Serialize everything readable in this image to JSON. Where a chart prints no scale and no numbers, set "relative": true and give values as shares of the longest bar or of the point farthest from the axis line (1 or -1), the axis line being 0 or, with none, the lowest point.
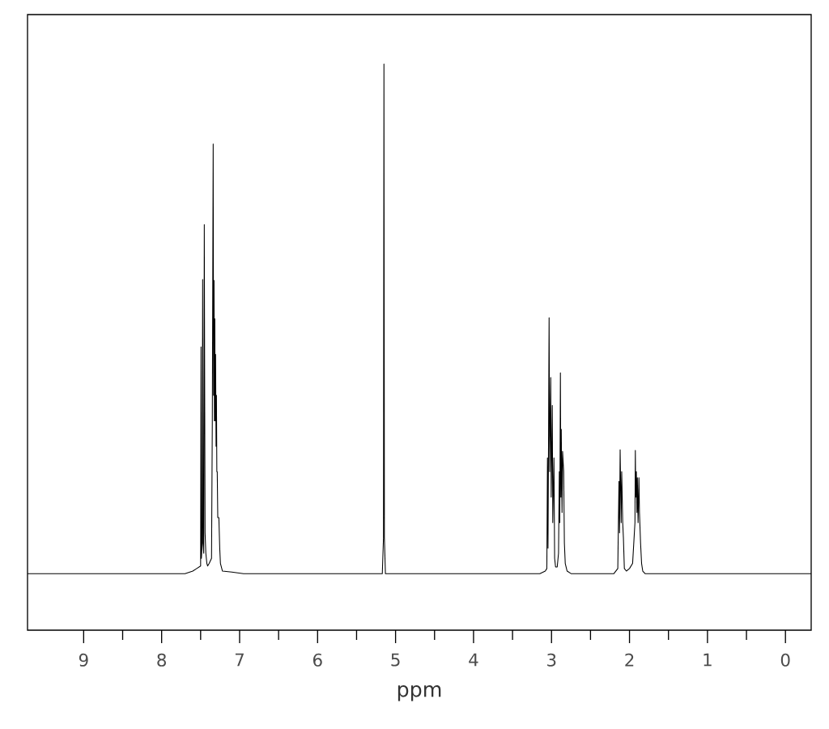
{
  "chart_data": {
    "type": "line",
    "xlabel": "ppm",
    "relative": true,
    "color": "#000000",
    "xlim": [
      9.72,
      -0.33
    ],
    "xticks": [
      9,
      8,
      7,
      6,
      5,
      4,
      3,
      2,
      1,
      0
    ],
    "x": [
      9.72,
      7.7,
      7.6,
      7.55,
      7.5,
      7.495,
      7.49,
      7.48,
      7.474,
      7.468,
      7.46,
      7.453,
      7.443,
      7.433,
      7.42,
      7.41,
      7.39,
      7.36,
      7.35,
      7.339,
      7.334,
      7.328,
      7.323,
      7.318,
      7.313,
      7.308,
      7.302,
      7.297,
      7.292,
      7.287,
      7.28,
      7.266,
      7.255,
      7.246,
      7.22,
      7.1,
      6.95,
      5.3,
      5.17,
      5.155,
      5.149,
      5.143,
      5.13,
      4.95,
      3.15,
      3.08,
      3.06,
      3.052,
      3.045,
      3.031,
      3.024,
      3.01,
      3.004,
      2.99,
      2.984,
      2.969,
      2.96,
      2.948,
      2.927,
      2.91,
      2.9,
      2.894,
      2.886,
      2.88,
      2.875,
      2.865,
      2.858,
      2.844,
      2.835,
      2.824,
      2.8,
      2.75,
      2.2,
      2.15,
      2.135,
      2.128,
      2.12,
      2.107,
      2.1,
      2.092,
      2.087,
      2.078,
      2.066,
      2.04,
      2.0,
      1.96,
      1.93,
      1.925,
      1.92,
      1.912,
      1.905,
      1.899,
      1.89,
      1.879,
      1.872,
      1.858,
      1.845,
      1.83,
      1.8,
      -0.33
    ],
    "values": [
      0,
      0,
      0.005,
      0.01,
      0.015,
      0.445,
      0.03,
      0.06,
      0.577,
      0.06,
      0.04,
      0.685,
      0.08,
      0.04,
      0.02,
      0.015,
      0.02,
      0.03,
      0.3,
      0.843,
      0.35,
      0.575,
      0.3,
      0.5,
      0.3,
      0.43,
      0.25,
      0.35,
      0.2,
      0.2,
      0.11,
      0.11,
      0.05,
      0.02,
      0.005,
      0.003,
      0,
      0,
      0,
      0.07,
      1.0,
      0.07,
      0,
      0,
      0,
      0.005,
      0.01,
      0.227,
      0.05,
      0.502,
      0.2,
      0.385,
      0.15,
      0.33,
      0.1,
      0.227,
      0.03,
      0.013,
      0.013,
      0.04,
      0.2,
      0.1,
      0.394,
      0.15,
      0.283,
      0.12,
      0.24,
      0.2,
      0.06,
      0.02,
      0.005,
      0,
      0,
      0.01,
      0.181,
      0.08,
      0.243,
      0.1,
      0.2,
      0.14,
      0.1,
      0.07,
      0.01,
      0.005,
      0.01,
      0.02,
      0.1,
      0.242,
      0.15,
      0.2,
      0.12,
      0.188,
      0.1,
      0.188,
      0.12,
      0.06,
      0.02,
      0.005,
      0,
      0
    ]
  }
}
